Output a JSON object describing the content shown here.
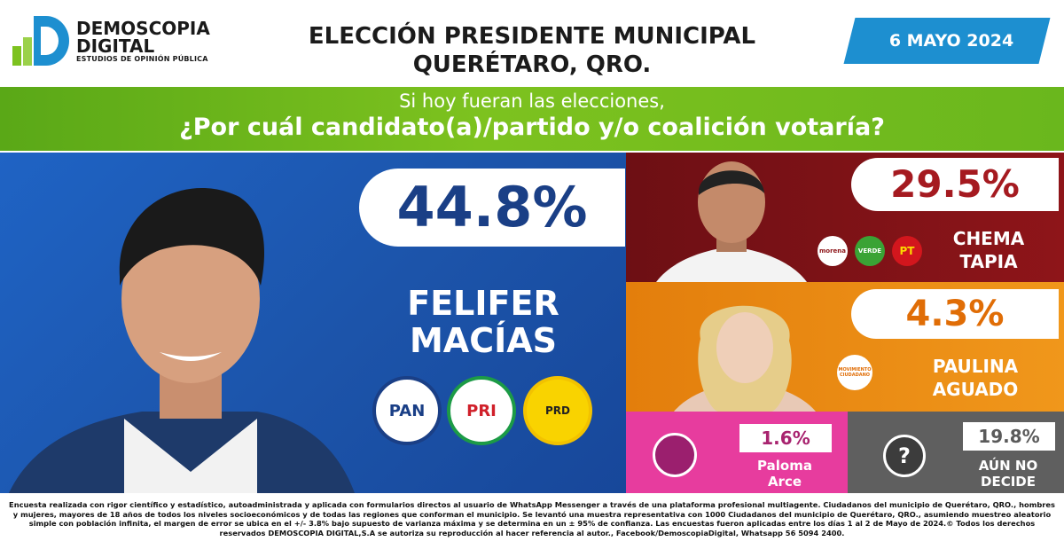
{
  "brand": {
    "name_line1": "DEMOSCOPIA",
    "name_line2": "DIGITAL",
    "tagline": "ESTUDIOS DE OPINIÓN PÚBLICA",
    "colors": {
      "green": "#7dc21f",
      "blue": "#1d8fd0"
    }
  },
  "header": {
    "title_line1": "ELECCIÓN PRESIDENTE MUNICIPAL",
    "title_line2": "QUERÉTARO, QRO.",
    "date": "6 MAYO 2024"
  },
  "question": {
    "line1": "Si hoy fueran las elecciones,",
    "line2": "¿Por cuál candidato(a)/partido y/o coalición votaría?"
  },
  "candidates": {
    "felifer": {
      "percent": "44.8%",
      "name_line1": "FELIFER",
      "name_line2": "MACÍAS",
      "parties": [
        "PAN",
        "PRI",
        "PRD"
      ],
      "color": "#1f63c4"
    },
    "chema": {
      "percent": "29.5%",
      "name_line1": "CHEMA",
      "name_line2": "TAPIA",
      "parties": [
        "morena",
        "VERDE",
        "PT"
      ],
      "color": "#8e1519"
    },
    "paulina": {
      "percent": "4.3%",
      "name_line1": "PAULINA",
      "name_line2": "AGUADO",
      "parties": [
        "MOVIMIENTO CIUDADANO"
      ],
      "color": "#f0971b"
    },
    "paloma": {
      "percent": "1.6%",
      "name_line1": "Paloma",
      "name_line2": "Arce",
      "color": "#e73c9e"
    },
    "undecided": {
      "percent": "19.8%",
      "name_line1": "AÚN NO",
      "name_line2": "DECIDE",
      "icon": "question-icon",
      "color": "#5f5f5f"
    }
  },
  "footer": {
    "text": "Encuesta realizada con rigor científico y estadístico, autoadministrada y aplicada con formularios directos al usuario de WhatsApp Messenger a través de una plataforma profesional multiagente. Ciudadanos del municipio de Querétaro, QRO., hombres y mujeres, mayores de 18 años de todos los niveles socioeconómicos y de todas las regiones que conforman el municipio. Se levantó una muestra representativa con 1000 Ciudadanos del municipio de Querétaro, QRO., asumiendo muestreo aleatorio simple con población infinita, el margen de error se ubica en el +/- 3.8% bajo supuesto de varianza máxima y se determina en un ± 95% de confianza. Las encuestas fueron aplicadas entre los días 1 al 2 de Mayo de 2024.© Todos los derechos reservados DEMOSCOPIA DIGITAL,S.A se autoriza su reproducción al hacer referencia al autor., Facebook/DemoscopiaDigital, Whatsapp 56 5094 2400."
  }
}
